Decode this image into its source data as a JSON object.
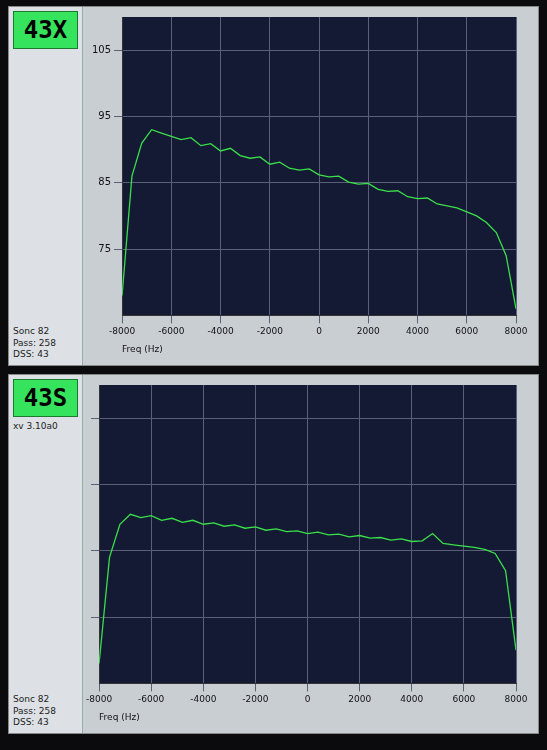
{
  "chart_data": [
    {
      "type": "line",
      "title": "43X",
      "xlabel": "Freq (Hz)",
      "annotations": [
        "Sonc 82",
        "Pass: 258",
        "DSS: 43"
      ],
      "x": [
        -8000,
        -7600,
        -7200,
        -6800,
        -6400,
        -6000,
        -5600,
        -5200,
        -4800,
        -4400,
        -4000,
        -3600,
        -3200,
        -2800,
        -2400,
        -2000,
        -1600,
        -1200,
        -800,
        -400,
        0,
        400,
        800,
        1200,
        1600,
        2000,
        2400,
        2800,
        3200,
        3600,
        4000,
        4400,
        4800,
        5200,
        5600,
        6000,
        6400,
        6800,
        7200,
        7600,
        8000
      ],
      "values": [
        68,
        86,
        91,
        93,
        92.5,
        92,
        91.5,
        91.8,
        90.6,
        90.9,
        89.8,
        90.2,
        89.1,
        88.7,
        88.9,
        87.8,
        88.1,
        87.2,
        86.9,
        87.1,
        86.2,
        85.9,
        86.0,
        85.1,
        84.8,
        84.9,
        84.0,
        83.7,
        83.8,
        82.9,
        82.6,
        82.7,
        81.8,
        81.5,
        81.2,
        80.6,
        80.0,
        79.0,
        77.5,
        74.0,
        66
      ],
      "color": "#39e04a",
      "xlim": [
        -8000,
        8000
      ],
      "xticks": [
        -8000,
        -6000,
        -4000,
        -2000,
        0,
        2000,
        4000,
        6000,
        8000
      ],
      "ylim": [
        65,
        110
      ],
      "yticks": [
        75,
        85,
        95,
        105
      ],
      "grid": true
    },
    {
      "type": "line",
      "title": "43S",
      "xlabel": "Freq (Hz)",
      "annotations": [
        "xv 3.10a0",
        "Sonc 82",
        "Pass: 258",
        "DSS: 43"
      ],
      "x": [
        -8000,
        -7600,
        -7200,
        -6800,
        -6400,
        -6000,
        -5600,
        -5200,
        -4800,
        -4400,
        -4000,
        -3600,
        -3200,
        -2800,
        -2400,
        -2000,
        -1600,
        -1200,
        -800,
        -400,
        0,
        400,
        800,
        1200,
        1600,
        2000,
        2400,
        2800,
        3200,
        3600,
        4000,
        4400,
        4800,
        5200,
        5600,
        6000,
        6400,
        6800,
        7200,
        7600,
        8000
      ],
      "values": [
        68,
        84,
        89,
        90.5,
        90,
        90.3,
        89.6,
        89.9,
        89.3,
        89.6,
        89.0,
        89.2,
        88.7,
        88.9,
        88.4,
        88.6,
        88.1,
        88.3,
        87.9,
        88.0,
        87.6,
        87.8,
        87.4,
        87.5,
        87.1,
        87.3,
        86.9,
        87.0,
        86.6,
        86.8,
        86.4,
        86.5,
        87.6,
        86.1,
        85.9,
        85.7,
        85.5,
        85.2,
        84.6,
        82.0,
        70
      ],
      "color": "#39e04a",
      "xlim": [
        -8000,
        8000
      ],
      "xticks": [
        -8000,
        -6000,
        -4000,
        -2000,
        0,
        2000,
        4000,
        6000,
        8000
      ],
      "ylim": [
        65,
        110
      ],
      "yticks": [
        75,
        85,
        95,
        105
      ],
      "grid": true,
      "tick_labels": "x"
    }
  ]
}
